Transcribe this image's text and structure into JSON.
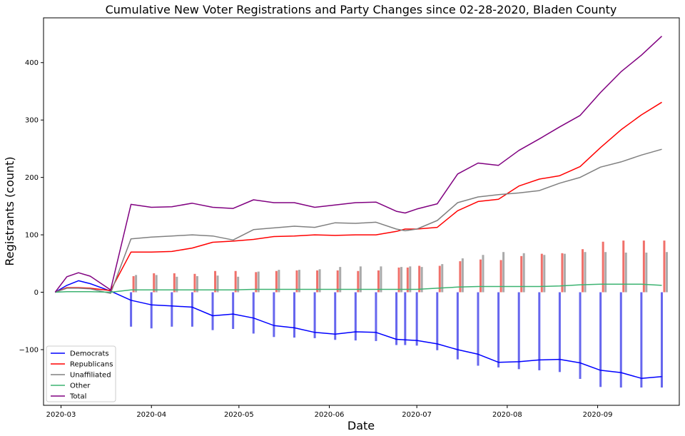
{
  "chart_data": {
    "type": "line",
    "title": "Cumulative New Voter Registrations and Party Changes since 02-28-2020, Bladen County",
    "xlabel": "Date",
    "ylabel": "Registrants (count)",
    "xlim": [
      "2020-02-24",
      "2020-09-29"
    ],
    "ylim": [
      -197,
      478
    ],
    "x_ticks": [
      "2020-03-01",
      "2020-04-01",
      "2020-05-01",
      "2020-06-01",
      "2020-07-01",
      "2020-08-01",
      "2020-09-01"
    ],
    "x_tick_labels": [
      "2020-03",
      "2020-04",
      "2020-05",
      "2020-06",
      "2020-07",
      "2020-08",
      "2020-09"
    ],
    "y_ticks": [
      -100,
      0,
      100,
      200,
      300,
      400
    ],
    "grid": false,
    "legend_position": "lower-left",
    "series": [
      {
        "name": "Democrats",
        "color": "#0000ff",
        "points": [
          [
            "2020-02-28",
            0
          ],
          [
            "2020-03-03",
            12
          ],
          [
            "2020-03-07",
            20
          ],
          [
            "2020-03-11",
            15
          ],
          [
            "2020-03-18",
            2
          ],
          [
            "2020-03-25",
            -14
          ],
          [
            "2020-04-01",
            -22
          ],
          [
            "2020-04-08",
            -24
          ],
          [
            "2020-04-15",
            -26
          ],
          [
            "2020-04-22",
            -41
          ],
          [
            "2020-04-29",
            -38
          ],
          [
            "2020-05-06",
            -45
          ],
          [
            "2020-05-13",
            -58
          ],
          [
            "2020-05-20",
            -62
          ],
          [
            "2020-05-27",
            -70
          ],
          [
            "2020-06-03",
            -73
          ],
          [
            "2020-06-10",
            -69
          ],
          [
            "2020-06-17",
            -70
          ],
          [
            "2020-06-24",
            -82
          ],
          [
            "2020-06-27",
            -83
          ],
          [
            "2020-07-01",
            -84
          ],
          [
            "2020-07-08",
            -90
          ],
          [
            "2020-07-15",
            -100
          ],
          [
            "2020-07-22",
            -108
          ],
          [
            "2020-07-29",
            -122
          ],
          [
            "2020-08-05",
            -121
          ],
          [
            "2020-08-12",
            -118
          ],
          [
            "2020-08-19",
            -117
          ],
          [
            "2020-08-26",
            -123
          ],
          [
            "2020-09-02",
            -136
          ],
          [
            "2020-09-09",
            -140
          ],
          [
            "2020-09-16",
            -150
          ],
          [
            "2020-09-23",
            -147
          ]
        ]
      },
      {
        "name": "Republicans",
        "color": "#ff0000",
        "points": [
          [
            "2020-02-28",
            0
          ],
          [
            "2020-03-03",
            8
          ],
          [
            "2020-03-07",
            8
          ],
          [
            "2020-03-11",
            7
          ],
          [
            "2020-03-18",
            3
          ],
          [
            "2020-03-25",
            70
          ],
          [
            "2020-04-01",
            70
          ],
          [
            "2020-04-08",
            71
          ],
          [
            "2020-04-15",
            77
          ],
          [
            "2020-04-22",
            87
          ],
          [
            "2020-04-29",
            89
          ],
          [
            "2020-05-06",
            92
          ],
          [
            "2020-05-13",
            97
          ],
          [
            "2020-05-20",
            98
          ],
          [
            "2020-05-27",
            100
          ],
          [
            "2020-06-03",
            99
          ],
          [
            "2020-06-10",
            100
          ],
          [
            "2020-06-17",
            100
          ],
          [
            "2020-06-24",
            106
          ],
          [
            "2020-06-27",
            110
          ],
          [
            "2020-07-01",
            110
          ],
          [
            "2020-07-08",
            113
          ],
          [
            "2020-07-15",
            142
          ],
          [
            "2020-07-22",
            158
          ],
          [
            "2020-07-29",
            162
          ],
          [
            "2020-08-05",
            185
          ],
          [
            "2020-08-12",
            197
          ],
          [
            "2020-08-19",
            203
          ],
          [
            "2020-08-26",
            219
          ],
          [
            "2020-09-02",
            252
          ],
          [
            "2020-09-09",
            283
          ],
          [
            "2020-09-16",
            309
          ],
          [
            "2020-09-23",
            331
          ]
        ]
      },
      {
        "name": "Unaffiliated",
        "color": "#808080",
        "points": [
          [
            "2020-02-28",
            0
          ],
          [
            "2020-03-03",
            7
          ],
          [
            "2020-03-07",
            7
          ],
          [
            "2020-03-11",
            6
          ],
          [
            "2020-03-18",
            -2
          ],
          [
            "2020-03-25",
            93
          ],
          [
            "2020-04-01",
            96
          ],
          [
            "2020-04-08",
            98
          ],
          [
            "2020-04-15",
            100
          ],
          [
            "2020-04-22",
            98
          ],
          [
            "2020-04-29",
            91
          ],
          [
            "2020-05-06",
            109
          ],
          [
            "2020-05-13",
            112
          ],
          [
            "2020-05-20",
            115
          ],
          [
            "2020-05-27",
            113
          ],
          [
            "2020-06-03",
            121
          ],
          [
            "2020-06-10",
            120
          ],
          [
            "2020-06-17",
            122
          ],
          [
            "2020-06-24",
            110
          ],
          [
            "2020-06-27",
            107
          ],
          [
            "2020-07-01",
            110
          ],
          [
            "2020-07-08",
            125
          ],
          [
            "2020-07-15",
            156
          ],
          [
            "2020-07-22",
            166
          ],
          [
            "2020-07-29",
            170
          ],
          [
            "2020-08-05",
            173
          ],
          [
            "2020-08-12",
            177
          ],
          [
            "2020-08-19",
            190
          ],
          [
            "2020-08-26",
            200
          ],
          [
            "2020-09-02",
            218
          ],
          [
            "2020-09-09",
            227
          ],
          [
            "2020-09-16",
            239
          ],
          [
            "2020-09-23",
            249
          ]
        ]
      },
      {
        "name": "Other",
        "color": "#3cb371",
        "points": [
          [
            "2020-02-28",
            0
          ],
          [
            "2020-03-03",
            1
          ],
          [
            "2020-03-07",
            1
          ],
          [
            "2020-03-11",
            1
          ],
          [
            "2020-03-18",
            0
          ],
          [
            "2020-03-25",
            4
          ],
          [
            "2020-04-01",
            4
          ],
          [
            "2020-04-08",
            4
          ],
          [
            "2020-04-15",
            4
          ],
          [
            "2020-04-22",
            4
          ],
          [
            "2020-04-29",
            4
          ],
          [
            "2020-05-06",
            5
          ],
          [
            "2020-05-13",
            5
          ],
          [
            "2020-05-20",
            5
          ],
          [
            "2020-05-27",
            5
          ],
          [
            "2020-06-03",
            5
          ],
          [
            "2020-06-10",
            5
          ],
          [
            "2020-06-17",
            5
          ],
          [
            "2020-06-24",
            5
          ],
          [
            "2020-06-27",
            5
          ],
          [
            "2020-07-01",
            5
          ],
          [
            "2020-07-08",
            7
          ],
          [
            "2020-07-15",
            9
          ],
          [
            "2020-07-22",
            10
          ],
          [
            "2020-07-29",
            10
          ],
          [
            "2020-08-05",
            10
          ],
          [
            "2020-08-12",
            10
          ],
          [
            "2020-08-19",
            11
          ],
          [
            "2020-08-26",
            13
          ],
          [
            "2020-09-02",
            14
          ],
          [
            "2020-09-09",
            14
          ],
          [
            "2020-09-16",
            14
          ],
          [
            "2020-09-23",
            12
          ]
        ]
      },
      {
        "name": "Total",
        "color": "#800080",
        "points": [
          [
            "2020-02-28",
            0
          ],
          [
            "2020-03-03",
            27
          ],
          [
            "2020-03-07",
            34
          ],
          [
            "2020-03-11",
            28
          ],
          [
            "2020-03-18",
            4
          ],
          [
            "2020-03-25",
            153
          ],
          [
            "2020-04-01",
            148
          ],
          [
            "2020-04-08",
            149
          ],
          [
            "2020-04-15",
            155
          ],
          [
            "2020-04-22",
            148
          ],
          [
            "2020-04-29",
            146
          ],
          [
            "2020-05-06",
            161
          ],
          [
            "2020-05-13",
            156
          ],
          [
            "2020-05-20",
            156
          ],
          [
            "2020-05-27",
            148
          ],
          [
            "2020-06-03",
            152
          ],
          [
            "2020-06-10",
            156
          ],
          [
            "2020-06-17",
            157
          ],
          [
            "2020-06-24",
            141
          ],
          [
            "2020-06-27",
            138
          ],
          [
            "2020-07-01",
            145
          ],
          [
            "2020-07-08",
            154
          ],
          [
            "2020-07-15",
            206
          ],
          [
            "2020-07-22",
            225
          ],
          [
            "2020-07-29",
            221
          ],
          [
            "2020-08-05",
            247
          ],
          [
            "2020-08-12",
            267
          ],
          [
            "2020-08-19",
            288
          ],
          [
            "2020-08-26",
            308
          ],
          [
            "2020-09-02",
            348
          ],
          [
            "2020-09-09",
            384
          ],
          [
            "2020-09-16",
            413
          ],
          [
            "2020-09-23",
            446
          ]
        ]
      }
    ],
    "bar_groups": {
      "colors": {
        "democrats": "#6666ee",
        "republicans": "#f0706a",
        "unaffiliated": "#aaaaaa"
      },
      "opacity": 1,
      "dates": [
        "2020-03-25",
        "2020-04-01",
        "2020-04-08",
        "2020-04-15",
        "2020-04-22",
        "2020-04-29",
        "2020-05-06",
        "2020-05-13",
        "2020-05-20",
        "2020-05-27",
        "2020-06-03",
        "2020-06-10",
        "2020-06-17",
        "2020-06-24",
        "2020-06-27",
        "2020-07-01",
        "2020-07-08",
        "2020-07-15",
        "2020-07-22",
        "2020-07-29",
        "2020-08-05",
        "2020-08-12",
        "2020-08-19",
        "2020-08-26",
        "2020-09-02",
        "2020-09-09",
        "2020-09-16",
        "2020-09-23"
      ],
      "democrats": [
        -60,
        -63,
        -60,
        -60,
        -66,
        -64,
        -72,
        -78,
        -79,
        -80,
        -83,
        -84,
        -85,
        -92,
        -92,
        -93,
        -101,
        -117,
        -128,
        -131,
        -134,
        -136,
        -139,
        -151,
        -165,
        -166,
        -166,
        -166
      ],
      "republicans": [
        28,
        33,
        33,
        32,
        37,
        37,
        35,
        37,
        38,
        38,
        38,
        37,
        38,
        43,
        43,
        46,
        46,
        54,
        57,
        56,
        63,
        67,
        68,
        75,
        88,
        90,
        90,
        90
      ],
      "unaffiliated": [
        30,
        30,
        27,
        28,
        29,
        27,
        36,
        39,
        39,
        40,
        44,
        45,
        45,
        44,
        45,
        44,
        49,
        59,
        65,
        70,
        68,
        65,
        67,
        70,
        70,
        69,
        69,
        70
      ]
    }
  }
}
